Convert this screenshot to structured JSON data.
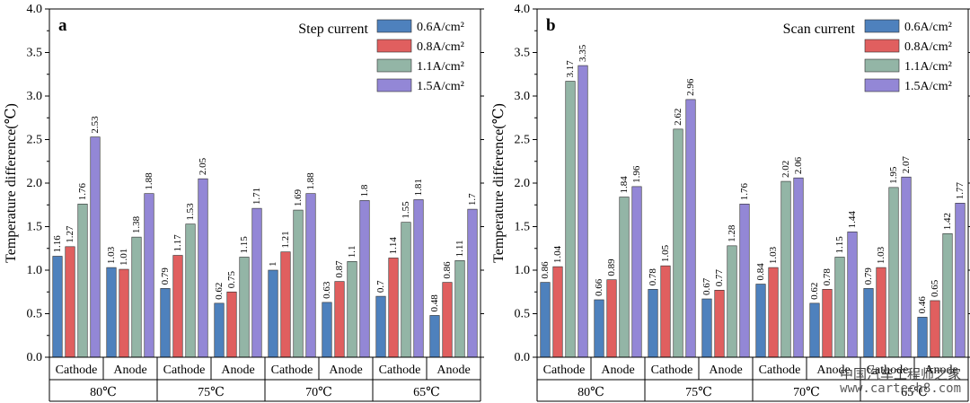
{
  "chart_data": [
    {
      "type": "bar",
      "panel_label": "a",
      "title": "Step current",
      "ylabel": "Temperature difference(℃)",
      "ylim": [
        0,
        4.0
      ],
      "yticks": [
        "0.0",
        "0.5",
        "1.0",
        "1.5",
        "2.0",
        "2.5",
        "3.0",
        "3.5",
        "4.0"
      ],
      "categories": [
        "Cathode",
        "Anode",
        "Cathode",
        "Anode",
        "Cathode",
        "Anode",
        "Cathode",
        "Anode"
      ],
      "groups": [
        "80℃",
        "75℃",
        "70℃",
        "65℃"
      ],
      "legend_position": "top-right",
      "series": [
        {
          "name": "0.6A/cm²",
          "color": "#4e81bd",
          "values": [
            1.16,
            1.03,
            0.79,
            0.62,
            1.0,
            0.63,
            0.7,
            0.48
          ],
          "labels": [
            "1.16",
            "1.03",
            "0.79",
            "0.62",
            "1",
            "0.63",
            "0.7",
            "0.48"
          ]
        },
        {
          "name": "0.8A/cm²",
          "color": "#e05f5f",
          "values": [
            1.27,
            1.01,
            1.17,
            0.75,
            1.21,
            0.87,
            1.14,
            0.86
          ],
          "labels": [
            "1.27",
            "1.01",
            "1.17",
            "0.75",
            "1.21",
            "0.87",
            "1.14",
            "0.86"
          ]
        },
        {
          "name": "1.1A/cm²",
          "color": "#93b5a6",
          "values": [
            1.76,
            1.38,
            1.53,
            1.15,
            1.69,
            1.1,
            1.55,
            1.11
          ],
          "labels": [
            "1.76",
            "1.38",
            "1.53",
            "1.15",
            "1.69",
            "1.1",
            "1.55",
            "1.11"
          ]
        },
        {
          "name": "1.5A/cm²",
          "color": "#9387d6",
          "values": [
            2.53,
            1.88,
            2.05,
            1.71,
            1.88,
            1.8,
            1.81,
            1.7
          ],
          "labels": [
            "2.53",
            "1.88",
            "2.05",
            "1.71",
            "1.88",
            "1.8",
            "1.81",
            "1.7"
          ]
        }
      ]
    },
    {
      "type": "bar",
      "panel_label": "b",
      "title": "Scan current",
      "ylabel": "Temperature difference(℃)",
      "ylim": [
        0,
        4.0
      ],
      "yticks": [
        "0.0",
        "0.5",
        "1.0",
        "1.5",
        "2.0",
        "2.5",
        "3.0",
        "3.5",
        "4.0"
      ],
      "categories": [
        "Cathode",
        "Anode",
        "Cathode",
        "Anode",
        "Cathode",
        "Anode",
        "Cathode",
        "Anode"
      ],
      "groups": [
        "80℃",
        "75℃",
        "70℃",
        "65℃"
      ],
      "legend_position": "top-right",
      "series": [
        {
          "name": "0.6A/cm²",
          "color": "#4e81bd",
          "values": [
            0.86,
            0.66,
            0.78,
            0.67,
            0.84,
            0.62,
            0.79,
            0.46
          ],
          "labels": [
            "0.86",
            "0.66",
            "0.78",
            "0.67",
            "0.84",
            "0.62",
            "0.79",
            "0.46"
          ]
        },
        {
          "name": "0.8A/cm²",
          "color": "#e05f5f",
          "values": [
            1.04,
            0.89,
            1.05,
            0.77,
            1.03,
            0.78,
            1.03,
            0.65
          ],
          "labels": [
            "1.04",
            "0.89",
            "1.05",
            "0.77",
            "1.03",
            "0.78",
            "1.03",
            "0.65"
          ]
        },
        {
          "name": "1.1A/cm²",
          "color": "#93b5a6",
          "values": [
            3.17,
            1.84,
            2.62,
            1.28,
            2.02,
            1.15,
            1.95,
            1.42
          ],
          "labels": [
            "3.17",
            "1.84",
            "2.62",
            "1.28",
            "2.02",
            "1.15",
            "1.95",
            "1.42"
          ]
        },
        {
          "name": "1.5A/cm²",
          "color": "#9387d6",
          "values": [
            3.35,
            1.96,
            2.96,
            1.76,
            2.06,
            1.44,
            2.07,
            1.77
          ],
          "labels": [
            "3.35",
            "1.96",
            "2.96",
            "1.76",
            "2.06",
            "1.44",
            "2.07",
            "1.77"
          ]
        }
      ]
    }
  ],
  "watermark": {
    "line1": "中国汽车工程师之家",
    "line2": "www.cartech8.com"
  }
}
